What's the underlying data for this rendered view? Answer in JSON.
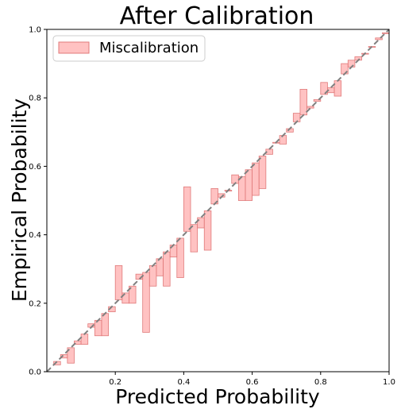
{
  "chart_data": {
    "type": "bar",
    "title": "After Calibration",
    "xlabel": "Predicted Probability",
    "ylabel": "Empirical Probability",
    "xlim": [
      0,
      1
    ],
    "ylim": [
      0,
      1
    ],
    "xticks": [
      "0.2",
      "0.4",
      "0.6",
      "0.8",
      "1.0"
    ],
    "yticks": [
      "0.0",
      "0.2",
      "0.4",
      "0.6",
      "0.8",
      "1.0"
    ],
    "legend": {
      "placement": "top-left",
      "entries": [
        "Miscalibration"
      ]
    },
    "reference_line": {
      "style": "dashed",
      "from": [
        0,
        0
      ],
      "to": [
        1,
        1
      ],
      "color": "#808080"
    },
    "colors": {
      "bar_fill": "#ff9999",
      "bar_stroke": "#e07a7a",
      "diagonal": "#808080"
    },
    "bin_width": 0.02,
    "series": [
      {
        "name": "Miscalibration",
        "x": [
          0.03,
          0.05,
          0.07,
          0.09,
          0.11,
          0.13,
          0.15,
          0.17,
          0.19,
          0.21,
          0.23,
          0.25,
          0.27,
          0.29,
          0.31,
          0.33,
          0.35,
          0.37,
          0.39,
          0.41,
          0.43,
          0.45,
          0.47,
          0.49,
          0.51,
          0.53,
          0.55,
          0.57,
          0.59,
          0.61,
          0.63,
          0.65,
          0.67,
          0.69,
          0.71,
          0.73,
          0.75,
          0.77,
          0.79,
          0.81,
          0.83,
          0.85,
          0.87,
          0.89,
          0.91,
          0.93,
          0.95,
          0.97,
          0.99
        ],
        "empirical": [
          0.02,
          0.04,
          0.025,
          0.08,
          0.08,
          0.14,
          0.105,
          0.105,
          0.175,
          0.31,
          0.2,
          0.2,
          0.285,
          0.115,
          0.25,
          0.28,
          0.25,
          0.335,
          0.275,
          0.54,
          0.35,
          0.42,
          0.355,
          0.535,
          0.52,
          0.53,
          0.575,
          0.5,
          0.5,
          0.515,
          0.535,
          0.635,
          0.67,
          0.665,
          0.7,
          0.755,
          0.825,
          0.775,
          0.795,
          0.845,
          0.815,
          0.805,
          0.9,
          0.91,
          0.92,
          0.93,
          0.95,
          0.975,
          0.99
        ]
      }
    ]
  }
}
